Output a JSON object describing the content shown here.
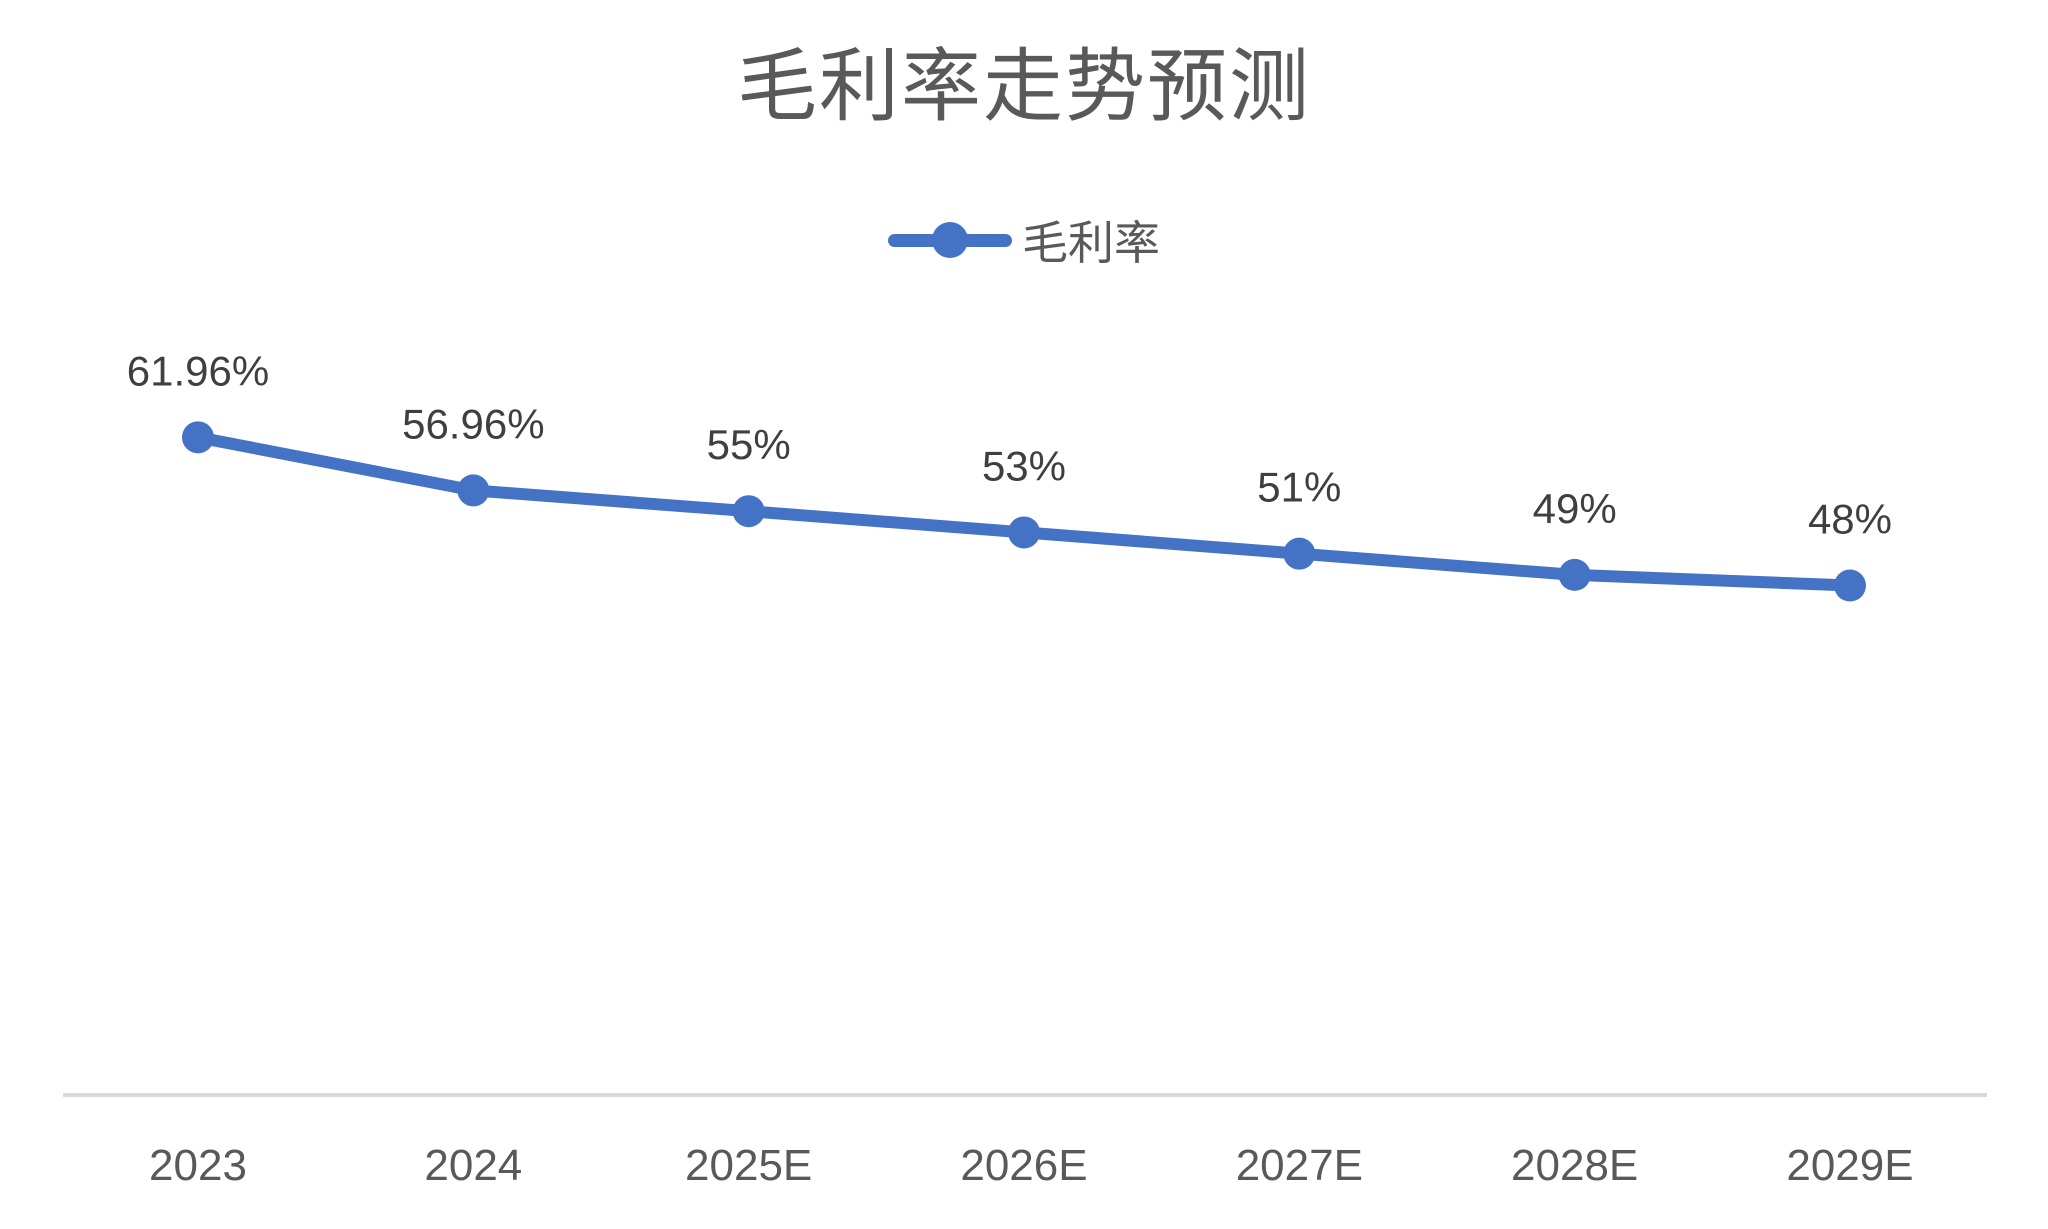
{
  "chart_data": {
    "type": "line",
    "title": "毛利率走势预测",
    "legend_label": "毛利率",
    "legend_position": "top",
    "grid": false,
    "categories": [
      "2023",
      "2024",
      "2025E",
      "2026E",
      "2027E",
      "2028E",
      "2029E"
    ],
    "series": [
      {
        "name": "毛利率",
        "values": [
          61.96,
          56.96,
          55,
          53,
          51,
          49,
          48
        ],
        "marker": "circle"
      }
    ],
    "data_labels": [
      "61.96%",
      "56.96%",
      "55%",
      "53%",
      "51%",
      "49%",
      "48%"
    ],
    "ylim": [
      0,
      70
    ],
    "colors": {
      "series": "#4472C4",
      "title": "#595959",
      "data_label": "#3F3F3F",
      "axis_label": "#595959",
      "axis_line": "#D9D9D9",
      "background": "#FFFFFF"
    }
  }
}
